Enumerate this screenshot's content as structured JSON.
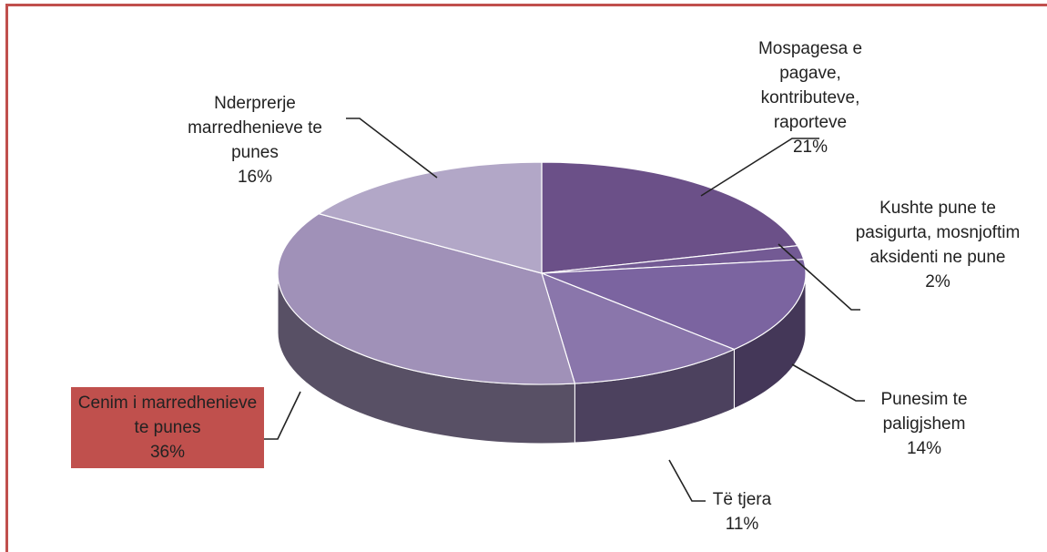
{
  "chart_data": {
    "type": "pie",
    "categories": [
      "Mospagesa e pagave, kontributeve, raporteve",
      "Kushte pune te pasigurta, mosnjoftim aksidenti ne pune",
      "Punesim te paligjshem",
      "Të tjera",
      "Cenim i marredhenieve te punes",
      "Nderprerje marredhenieve te punes"
    ],
    "values": [
      21,
      2,
      14,
      11,
      36,
      16
    ],
    "value_labels": [
      "21%",
      "2%",
      "14%",
      "11%",
      "36%",
      "16%"
    ],
    "colors": [
      "#6b5088",
      "#735a94",
      "#7b64a0",
      "#8a76ab",
      "#a091b8",
      "#b2a7c7"
    ]
  }
}
